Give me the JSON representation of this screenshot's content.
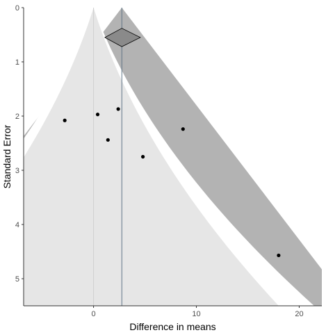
{
  "chart_data": {
    "type": "scatter",
    "title": "",
    "xlabel": "Difference in means",
    "ylabel": "Standard Error",
    "xlim": [
      -6.8,
      22.2
    ],
    "ylim": [
      5.5,
      0
    ],
    "y_reversed": true,
    "x_ticks": [
      0,
      10,
      20
    ],
    "y_ticks": [
      0,
      1,
      2,
      3,
      4,
      5
    ],
    "grid": false,
    "legend": "none",
    "points": [
      {
        "x": -2.8,
        "y": 2.08
      },
      {
        "x": 0.4,
        "y": 1.97
      },
      {
        "x": 1.4,
        "y": 2.44
      },
      {
        "x": 2.4,
        "y": 1.87
      },
      {
        "x": 4.8,
        "y": 2.75
      },
      {
        "x": 8.7,
        "y": 2.24
      },
      {
        "x": 18.0,
        "y": 4.57
      }
    ],
    "pooled_estimate": {
      "x": 2.75,
      "ci_low": 1.1,
      "ci_high": 4.55,
      "se": 0.55,
      "half_height_se": 0.17
    },
    "reference_line_x": 0,
    "funnel_outer_base_se": 2.37,
    "contour_z": [
      1.645,
      1.96
    ],
    "colors": {
      "panel": "#ffffff",
      "funnel_outer": "#b3b3b3",
      "contour_mid": "#ffffff",
      "contour_inner": "#e6e6e6",
      "points": "#000000",
      "diamond": "#8a8a8a",
      "estimate_line": "#5f7487",
      "reference_line": "#cfcfcf",
      "axis": "#333333",
      "tick_text": "#4d4d4d"
    }
  }
}
